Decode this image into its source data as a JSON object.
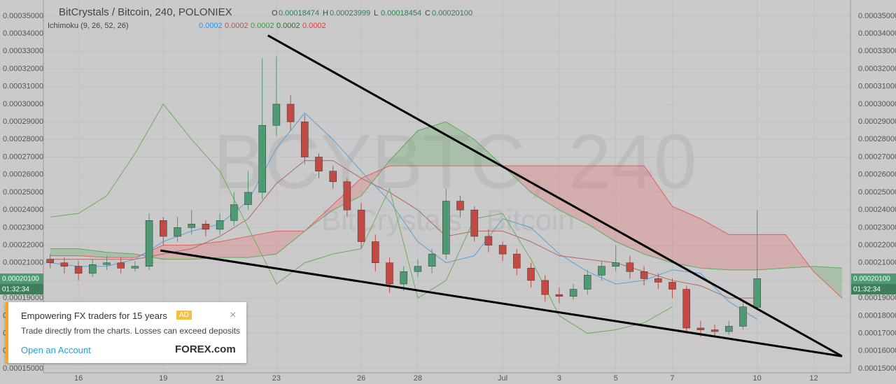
{
  "chart_data": {
    "type": "candlestick",
    "title": "BitCrystals / Bitcoin, 240, POLONIEX",
    "ohlc": [
      {
        "key": "O",
        "text": "0.00018474"
      },
      {
        "key": "H",
        "text": "0.00023999"
      },
      {
        "key": "L",
        "text": "0.00018454"
      },
      {
        "key": "C",
        "text": "0.00020100"
      }
    ],
    "indicator": {
      "name": "Ichimoku (9, 26, 52, 26)",
      "values": [
        "0.0002",
        "0.0002",
        "0.0002",
        "0.0002",
        "0.0002"
      ],
      "colors": [
        "#2196f3",
        "#c0504d",
        "#3a9a3a",
        "#1e7a1e",
        "#e53935"
      ]
    },
    "watermark": [
      "BCYBTC, 240",
      "BitCrystals / Bitcoin"
    ],
    "last_price_label": "0.00020100",
    "countdown": "01:32:34",
    "up_color": "#4e9a72",
    "down_color": "#c24a44",
    "x": [
      15,
      15.5,
      16,
      16.5,
      17,
      17.5,
      18,
      18.5,
      19,
      19.5,
      20,
      20.5,
      21,
      21.5,
      22,
      22.5,
      23,
      23.5,
      24,
      24.5,
      25,
      25.5,
      26,
      26.5,
      27,
      27.5,
      28,
      28.5,
      29,
      29.5,
      30,
      30.5,
      31,
      31.5,
      32,
      32.5,
      33,
      33.5,
      34,
      34.5,
      35,
      35.5,
      36,
      36.5,
      37,
      37.5,
      38,
      38.5,
      39,
      39.5,
      40
    ],
    "open": [
      0.000212,
      0.00021,
      0.000208,
      0.000204,
      0.000209,
      0.00021,
      0.000207,
      0.000208,
      0.000234,
      0.000225,
      0.00023,
      0.000232,
      0.000229,
      0.000234,
      0.000243,
      0.00025,
      0.000288,
      0.0003,
      0.00029,
      0.00027,
      0.000262,
      0.000256,
      0.00024,
      0.000222,
      0.00021,
      0.000198,
      0.000205,
      0.000208,
      0.000215,
      0.000245,
      0.00024,
      0.000225,
      0.00022,
      0.000215,
      0.000207,
      0.0002,
      0.000192,
      0.000191,
      0.000195,
      0.000203,
      0.000208,
      0.00021,
      0.000205,
      0.000201,
      0.000199,
      0.000195,
      0.000173,
      0.000172,
      0.000171,
      0.000174,
      0.00018474
    ],
    "high": [
      0.000215,
      0.000213,
      0.000211,
      0.000212,
      0.000214,
      0.000213,
      0.000211,
      0.000238,
      0.000236,
      0.000236,
      0.00024,
      0.000234,
      0.000238,
      0.00025,
      0.000262,
      0.000326,
      0.000327,
      0.000305,
      0.000294,
      0.000272,
      0.000265,
      0.000258,
      0.000244,
      0.000226,
      0.000213,
      0.000208,
      0.000212,
      0.000218,
      0.000252,
      0.000248,
      0.000242,
      0.000229,
      0.000222,
      0.000218,
      0.00021,
      0.000203,
      0.000196,
      0.000198,
      0.000206,
      0.000211,
      0.00022,
      0.000214,
      0.000208,
      0.000204,
      0.000201,
      0.000197,
      0.000177,
      0.000175,
      0.000177,
      0.000188,
      0.00023999
    ],
    "low": [
      0.000207,
      0.000204,
      0.0002,
      0.000202,
      0.000206,
      0.000204,
      0.000205,
      0.000206,
      0.00022,
      0.000222,
      0.000226,
      0.000225,
      0.000226,
      0.000231,
      0.00024,
      0.000246,
      0.000282,
      0.000285,
      0.000266,
      0.000258,
      0.000252,
      0.000236,
      0.000218,
      0.000205,
      0.000193,
      0.000194,
      0.000202,
      0.000204,
      0.000212,
      0.000236,
      0.000222,
      0.000216,
      0.000211,
      0.000203,
      0.000196,
      0.000188,
      0.000187,
      0.000189,
      0.000192,
      0.0002,
      0.000205,
      0.000201,
      0.000197,
      0.000195,
      0.00019,
      0.00017,
      0.000168,
      0.000168,
      0.000169,
      0.000172,
      0.00018454
    ],
    "close": [
      0.00021,
      0.000208,
      0.000204,
      0.000209,
      0.00021,
      0.000207,
      0.000208,
      0.000234,
      0.000225,
      0.00023,
      0.000232,
      0.000229,
      0.000234,
      0.000243,
      0.00025,
      0.000288,
      0.0003,
      0.00029,
      0.00027,
      0.000262,
      0.000256,
      0.00024,
      0.000222,
      0.00021,
      0.000198,
      0.000205,
      0.000208,
      0.000215,
      0.000245,
      0.00024,
      0.000225,
      0.00022,
      0.000215,
      0.000207,
      0.0002,
      0.000192,
      0.000191,
      0.000195,
      0.000203,
      0.000208,
      0.00021,
      0.000205,
      0.000201,
      0.000199,
      0.000195,
      0.000173,
      0.000172,
      0.000171,
      0.000174,
      0.000185,
      0.000201
    ],
    "lines": [
      {
        "color": "#5aa0d8",
        "x": [
          15,
          16,
          17,
          18,
          19,
          20,
          21,
          22,
          23,
          24,
          25,
          26,
          27,
          28,
          29,
          30,
          31,
          32,
          33,
          34,
          35,
          36,
          37,
          38,
          39,
          40
        ],
        "values": [
          0.00021,
          0.000208,
          0.000208,
          0.000212,
          0.000222,
          0.000228,
          0.000232,
          0.000245,
          0.000275,
          0.000295,
          0.00028,
          0.000262,
          0.000245,
          0.000222,
          0.00021,
          0.000214,
          0.000235,
          0.00023,
          0.000215,
          0.000205,
          0.000198,
          0.0002,
          0.000206,
          0.000204,
          0.000188,
          0.000178
        ]
      },
      {
        "color": "#b06a60",
        "x": [
          15,
          16,
          17,
          18,
          19,
          20,
          21,
          22,
          23,
          24,
          25,
          26,
          27,
          28,
          29,
          30,
          31,
          32,
          33,
          34,
          35,
          36,
          37,
          38,
          39,
          40
        ],
        "values": [
          0.000212,
          0.000212,
          0.000212,
          0.000212,
          0.000215,
          0.000218,
          0.000225,
          0.000235,
          0.000255,
          0.000268,
          0.000268,
          0.000258,
          0.00025,
          0.00024,
          0.000225,
          0.000228,
          0.000228,
          0.000222,
          0.000214,
          0.000212,
          0.00021,
          0.000205,
          0.0002,
          0.000197,
          0.00019,
          0.00019
        ]
      },
      {
        "color": "#6cae5a",
        "x": [
          15,
          16,
          17,
          18,
          19,
          20,
          21,
          22,
          23,
          24,
          25,
          26,
          27,
          28,
          29,
          30,
          31,
          32,
          33,
          34,
          35,
          36,
          37
        ],
        "values": [
          0.000236,
          0.000238,
          0.000248,
          0.000272,
          0.0003,
          0.00028,
          0.000262,
          0.00023,
          0.000198,
          0.00021,
          0.000215,
          0.000218,
          0.000252,
          0.00019,
          0.0002,
          0.000235,
          0.000238,
          0.000212,
          0.00018,
          0.00017,
          0.000172,
          0.000176,
          0.000185
        ]
      }
    ],
    "span_a": {
      "color": "#5cab5c",
      "x": [
        15,
        16,
        17,
        18,
        19,
        20,
        21,
        22,
        23,
        24,
        25,
        26,
        27,
        28,
        29,
        30,
        31,
        32,
        33,
        34,
        35,
        36,
        37,
        38,
        39,
        40,
        41,
        42,
        43
      ],
      "values": [
        0.000218,
        0.000218,
        0.000216,
        0.000215,
        0.000212,
        0.000212,
        0.000213,
        0.000213,
        0.000215,
        0.000228,
        0.00024,
        0.000248,
        0.000268,
        0.000285,
        0.00029,
        0.00028,
        0.000265,
        0.00025,
        0.00024,
        0.000232,
        0.000222,
        0.000215,
        0.00021,
        0.000207,
        0.000206,
        0.000206,
        0.000207,
        0.000208,
        0.000207
      ]
    },
    "span_b": {
      "color": "#e06060",
      "x": [
        15,
        16,
        17,
        18,
        19,
        20,
        21,
        22,
        23,
        24,
        25,
        26,
        27,
        28,
        29,
        30,
        31,
        32,
        33,
        34,
        35,
        36,
        37,
        38,
        39,
        40,
        41,
        42,
        43
      ],
      "values": [
        0.000214,
        0.000214,
        0.000213,
        0.000213,
        0.00022,
        0.00022,
        0.000222,
        0.000225,
        0.000228,
        0.000228,
        0.000243,
        0.000258,
        0.000265,
        0.000265,
        0.000265,
        0.000265,
        0.000265,
        0.000265,
        0.000265,
        0.000265,
        0.000265,
        0.000265,
        0.000242,
        0.000235,
        0.000226,
        0.000226,
        0.000226,
        0.000205,
        0.00019
      ]
    },
    "cloud_colors": {
      "up": "rgba(90,170,90,0.28)",
      "down": "rgba(235,110,110,0.3)"
    },
    "trendlines": [
      {
        "x": [
          22.7,
          43
        ],
        "y": [
          0.000339,
          0.000157
        ]
      },
      {
        "x": [
          18.9,
          43
        ],
        "y": [
          0.000217,
          0.000157
        ]
      }
    ],
    "xlim": [
      14.76,
      43.3
    ],
    "xticks": [
      16,
      19,
      21,
      23,
      26,
      28,
      {
        "value": 31,
        "label": "Jul"
      },
      {
        "value": 33,
        "label": "3"
      },
      {
        "value": 35,
        "label": "5"
      },
      {
        "value": 37,
        "label": "7"
      },
      {
        "value": 40,
        "label": "10"
      },
      {
        "value": 42,
        "label": "12"
      }
    ],
    "ylim": [
      0.0001476,
      0.0003591
    ],
    "yticks": [
      {
        "value": 0.00015,
        "label": "0.00015000"
      },
      {
        "value": 0.00016,
        "label": "0.00016000"
      },
      {
        "value": 0.00017,
        "label": "0.00017000"
      },
      {
        "value": 0.00018,
        "label": "0.00018000"
      },
      {
        "value": 0.00019,
        "label": "0.00019000"
      },
      {
        "value": 0.0002,
        "label": "0.00020000"
      },
      {
        "value": 0.00021,
        "label": "0.00021000"
      },
      {
        "value": 0.00022,
        "label": "0.00022000"
      },
      {
        "value": 0.00023,
        "label": "0.00023000"
      },
      {
        "value": 0.00024,
        "label": "0.00024000"
      },
      {
        "value": 0.00025,
        "label": "0.00025000"
      },
      {
        "value": 0.00026,
        "label": "0.00026000"
      },
      {
        "value": 0.00027,
        "label": "0.00027000"
      },
      {
        "value": 0.00028,
        "label": "0.00028000"
      },
      {
        "value": 0.00029,
        "label": "0.00029000"
      },
      {
        "value": 0.0003,
        "label": "0.00030000"
      },
      {
        "value": 0.00031,
        "label": "0.00031000"
      },
      {
        "value": 0.00032,
        "label": "0.00032000"
      },
      {
        "value": 0.00033,
        "label": "0.00033000"
      },
      {
        "value": 0.00034,
        "label": "0.00034000"
      },
      {
        "value": 0.00035,
        "label": "0.00035000"
      }
    ],
    "grid": true
  },
  "ad": {
    "title": "Empowering FX traders for 15 years",
    "badge": "AD",
    "text": "Trade directly from the charts. Losses can exceed deposits",
    "link": "Open an Account",
    "brand": "FOREX.com",
    "close": "×"
  }
}
